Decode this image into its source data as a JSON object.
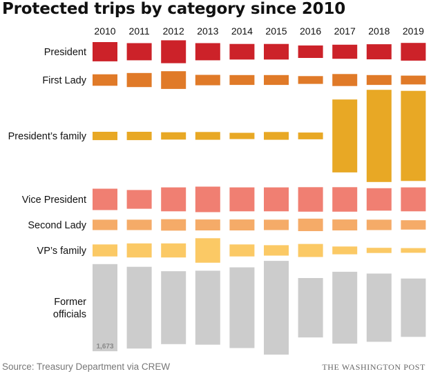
{
  "title": "Protected trips by category since 2010",
  "source": "Source: Treasury Department via CREW",
  "credit": "THE WASHINGTON POST",
  "colors": {
    "president": "#cc2229",
    "first_lady": "#e07a28",
    "presidents_family": "#e8a825",
    "vice_president": "#f07f72",
    "second_lady": "#f5ab68",
    "vps_family": "#fbc965",
    "former_officials": "#cccccc"
  },
  "chart_data": {
    "type": "bar",
    "categories": [
      "2010",
      "2011",
      "2012",
      "2013",
      "2014",
      "2015",
      "2016",
      "2017",
      "2018",
      "2019"
    ],
    "series": [
      {
        "name": "President",
        "label_lines": [
          "President"
        ],
        "color": "#cc2229",
        "values": [
          370,
          330,
          440,
          330,
          300,
          300,
          240,
          270,
          290,
          340
        ]
      },
      {
        "name": "First Lady",
        "label_lines": [
          "First Lady"
        ],
        "color": "#e07a28",
        "values": [
          220,
          270,
          340,
          200,
          190,
          190,
          150,
          230,
          190,
          170
        ]
      },
      {
        "name": "President’s family",
        "label_lines": [
          "President’s family"
        ],
        "color": "#e8a825",
        "values": [
          160,
          160,
          140,
          150,
          120,
          150,
          130,
          1400,
          1770,
          1730
        ]
      },
      {
        "name": "Vice President",
        "label_lines": [
          "Vice President"
        ],
        "color": "#f07f72",
        "values": [
          410,
          360,
          460,
          490,
          460,
          460,
          470,
          470,
          430,
          460
        ]
      },
      {
        "name": "Second Lady",
        "label_lines": [
          "Second Lady"
        ],
        "color": "#f5ab68",
        "values": [
          200,
          200,
          220,
          210,
          210,
          200,
          240,
          210,
          200,
          180
        ]
      },
      {
        "name": "VP’s family",
        "label_lines": [
          "VP’s family"
        ],
        "color": "#fbc965",
        "values": [
          230,
          270,
          270,
          470,
          230,
          200,
          250,
          150,
          100,
          90
        ]
      },
      {
        "name": "Former officials",
        "label_lines": [
          "Former",
          "officials"
        ],
        "color": "#cccccc",
        "values": [
          1673,
          1570,
          1400,
          1420,
          1550,
          1800,
          1140,
          1380,
          1310,
          1120
        ]
      }
    ],
    "annotations": [
      {
        "series": "Former officials",
        "category": "2010",
        "text": "1,673"
      }
    ]
  }
}
